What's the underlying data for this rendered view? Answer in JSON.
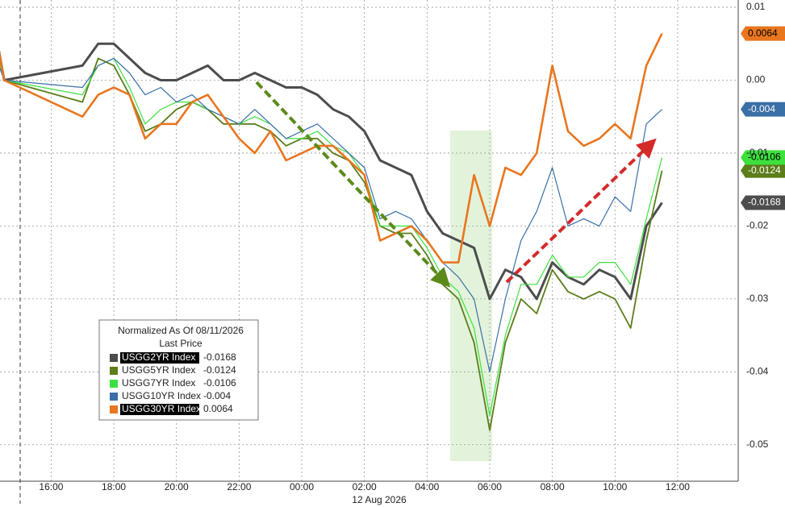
{
  "chart_data": {
    "type": "line",
    "legend_title": "Normalized As Of 08/11/2026",
    "legend_subtitle": "Last Price",
    "x_date_label": "12 Aug 2026",
    "x": [
      "2026-08-11T14:20",
      "2026-08-11T14:30",
      "2026-08-11T17:00",
      "2026-08-11T17:30",
      "2026-08-11T18:00",
      "2026-08-11T18:30",
      "2026-08-11T19:00",
      "2026-08-11T19:30",
      "2026-08-11T20:00",
      "2026-08-11T20:30",
      "2026-08-11T21:00",
      "2026-08-11T21:30",
      "2026-08-11T22:00",
      "2026-08-11T22:30",
      "2026-08-11T23:00",
      "2026-08-11T23:30",
      "2026-08-12T00:00",
      "2026-08-12T00:30",
      "2026-08-12T01:00",
      "2026-08-12T01:30",
      "2026-08-12T02:00",
      "2026-08-12T02:30",
      "2026-08-12T03:00",
      "2026-08-12T03:30",
      "2026-08-12T04:00",
      "2026-08-12T04:30",
      "2026-08-12T05:00",
      "2026-08-12T05:30",
      "2026-08-12T06:00",
      "2026-08-12T06:30",
      "2026-08-12T07:00",
      "2026-08-12T07:30",
      "2026-08-12T08:00",
      "2026-08-12T08:30",
      "2026-08-12T09:00",
      "2026-08-12T09:30",
      "2026-08-12T10:00",
      "2026-08-12T10:30",
      "2026-08-12T11:00",
      "2026-08-12T11:30"
    ],
    "series": [
      {
        "name": "USGG2YR Index",
        "color": "#4d4d4d",
        "values": [
          0.004,
          0.0,
          0.002,
          0.005,
          0.005,
          0.003,
          0.001,
          0.0,
          0.0,
          0.001,
          0.002,
          0.0,
          0.0,
          0.001,
          0.0,
          -0.001,
          -0.001,
          -0.002,
          -0.004,
          -0.005,
          -0.007,
          -0.011,
          -0.012,
          -0.013,
          -0.018,
          -0.021,
          -0.022,
          -0.023,
          -0.03,
          -0.026,
          -0.027,
          -0.03,
          -0.025,
          -0.027,
          -0.028,
          -0.026,
          -0.027,
          -0.03,
          -0.02,
          -0.0168
        ]
      },
      {
        "name": "USGG5YR Index",
        "color": "#5b7d1a",
        "values": [
          0.003,
          0.0,
          -0.003,
          0.003,
          0.002,
          -0.002,
          -0.007,
          -0.006,
          -0.004,
          -0.003,
          -0.004,
          -0.006,
          -0.006,
          -0.006,
          -0.007,
          -0.009,
          -0.008,
          -0.008,
          -0.01,
          -0.011,
          -0.014,
          -0.02,
          -0.021,
          -0.021,
          -0.024,
          -0.028,
          -0.03,
          -0.036,
          -0.048,
          -0.036,
          -0.03,
          -0.032,
          -0.026,
          -0.029,
          -0.03,
          -0.029,
          -0.03,
          -0.034,
          -0.022,
          -0.0124
        ]
      },
      {
        "name": "USGG7YR Index",
        "color": "#3ee03e",
        "values": [
          0.003,
          0.0,
          -0.002,
          0.002,
          0.003,
          -0.001,
          -0.006,
          -0.004,
          -0.003,
          -0.003,
          -0.004,
          -0.005,
          -0.006,
          -0.005,
          -0.006,
          -0.008,
          -0.008,
          -0.007,
          -0.009,
          -0.01,
          -0.013,
          -0.02,
          -0.02,
          -0.02,
          -0.023,
          -0.027,
          -0.029,
          -0.034,
          -0.046,
          -0.035,
          -0.028,
          -0.028,
          -0.024,
          -0.027,
          -0.027,
          -0.025,
          -0.025,
          -0.028,
          -0.019,
          -0.0106
        ]
      },
      {
        "name": "USGG10YR Index",
        "color": "#3a6fa8",
        "values": [
          0.002,
          0.0,
          -0.001,
          0.002,
          0.003,
          0.001,
          -0.002,
          -0.001,
          -0.003,
          -0.002,
          -0.004,
          -0.005,
          -0.006,
          -0.004,
          -0.006,
          -0.008,
          -0.007,
          -0.006,
          -0.008,
          -0.01,
          -0.012,
          -0.019,
          -0.018,
          -0.019,
          -0.022,
          -0.025,
          -0.027,
          -0.03,
          -0.04,
          -0.03,
          -0.022,
          -0.018,
          -0.012,
          -0.02,
          -0.019,
          -0.02,
          -0.016,
          -0.018,
          -0.006,
          -0.004
        ]
      },
      {
        "name": "USGG30YR Index",
        "color": "#e8761f",
        "values": [
          0.004,
          0.0,
          -0.005,
          -0.002,
          -0.001,
          -0.002,
          -0.008,
          -0.006,
          -0.006,
          -0.003,
          -0.002,
          -0.005,
          -0.008,
          -0.01,
          -0.007,
          -0.011,
          -0.01,
          -0.009,
          -0.009,
          -0.011,
          -0.013,
          -0.022,
          -0.021,
          -0.02,
          -0.022,
          -0.025,
          -0.025,
          -0.013,
          -0.02,
          -0.012,
          -0.013,
          -0.01,
          0.002,
          -0.007,
          -0.009,
          -0.008,
          -0.006,
          -0.008,
          0.002,
          0.0064
        ]
      }
    ],
    "xlim": [
      "2026-08-11T14:22",
      "2026-08-12T13:56"
    ],
    "xticks": [
      {
        "value": "2026-08-11T16:00",
        "label": "16:00"
      },
      {
        "value": "2026-08-11T18:00",
        "label": "18:00"
      },
      {
        "value": "2026-08-11T20:00",
        "label": "20:00"
      },
      {
        "value": "2026-08-11T22:00",
        "label": "22:00"
      },
      {
        "value": "2026-08-12T00:00",
        "label": "00:00"
      },
      {
        "value": "2026-08-12T02:00",
        "label": "02:00"
      },
      {
        "value": "2026-08-12T04:00",
        "label": "04:00"
      },
      {
        "value": "2026-08-12T06:00",
        "label": "06:00"
      },
      {
        "value": "2026-08-12T08:00",
        "label": "08:00"
      },
      {
        "value": "2026-08-12T10:00",
        "label": "10:00"
      },
      {
        "value": "2026-08-12T12:00",
        "label": "12:00"
      }
    ],
    "ylim": [
      -0.055,
      0.011
    ],
    "yticks": [
      0.01,
      {
        "value": 0,
        "label": "0.00"
      },
      -0.01,
      -0.02,
      -0.03,
      -0.04,
      -0.05
    ],
    "grid": true
  }
}
